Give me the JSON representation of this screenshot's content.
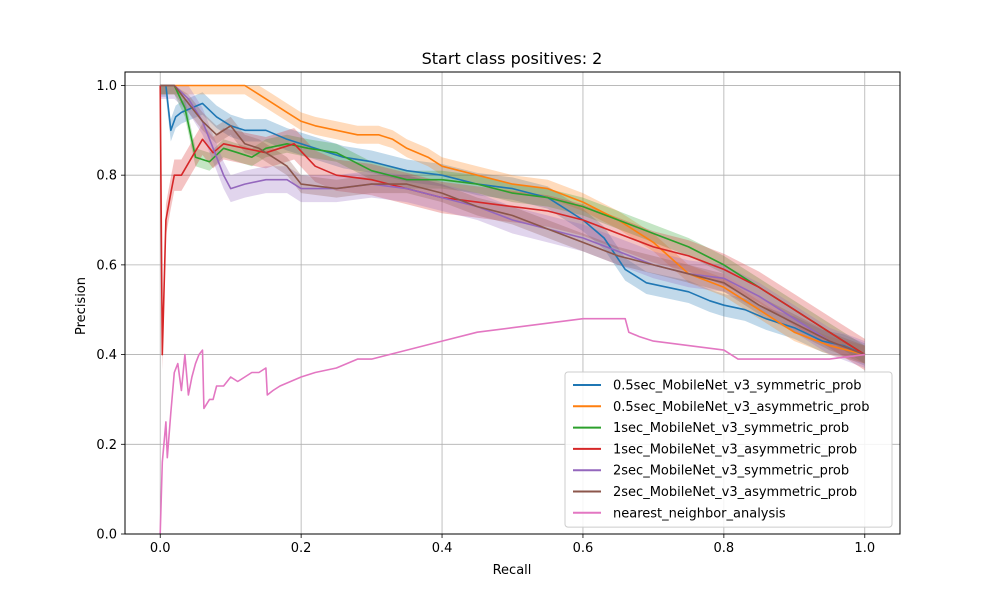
{
  "chart_data": {
    "type": "line",
    "title": "Start class positives: 2",
    "xlabel": "Recall",
    "ylabel": "Precision",
    "xlim": [
      -0.05,
      1.05
    ],
    "ylim": [
      0.0,
      1.03
    ],
    "xticks": [
      0.0,
      0.2,
      0.4,
      0.6,
      0.8,
      1.0
    ],
    "xtick_labels": [
      "0.0",
      "0.2",
      "0.4",
      "0.6",
      "0.8",
      "1.0"
    ],
    "yticks": [
      0.0,
      0.2,
      0.4,
      0.6,
      0.8,
      1.0
    ],
    "ytick_labels": [
      "0.0",
      "0.2",
      "0.4",
      "0.6",
      "0.8",
      "1.0"
    ],
    "grid": true,
    "legend_position": "lower-right",
    "series": [
      {
        "name": "0.5sec_MobileNet_v3_symmetric_prob",
        "color": "#1f77b4",
        "band": 0.025,
        "x": [
          0.0,
          0.003,
          0.008,
          0.015,
          0.022,
          0.03,
          0.045,
          0.06,
          0.08,
          0.1,
          0.12,
          0.15,
          0.18,
          0.22,
          0.26,
          0.3,
          0.35,
          0.4,
          0.45,
          0.5,
          0.55,
          0.6,
          0.63,
          0.66,
          0.69,
          0.72,
          0.75,
          0.78,
          0.8,
          0.83,
          0.86,
          0.9,
          0.94,
          0.97,
          1.0
        ],
        "y": [
          1.0,
          1.0,
          1.0,
          0.9,
          0.93,
          0.94,
          0.95,
          0.96,
          0.93,
          0.91,
          0.9,
          0.9,
          0.88,
          0.86,
          0.84,
          0.83,
          0.81,
          0.8,
          0.78,
          0.77,
          0.75,
          0.7,
          0.66,
          0.59,
          0.56,
          0.55,
          0.54,
          0.52,
          0.51,
          0.5,
          0.48,
          0.46,
          0.43,
          0.42,
          0.4
        ]
      },
      {
        "name": "0.5sec_MobileNet_v3_asymmetric_prob",
        "color": "#ff7f0e",
        "band": 0.02,
        "x": [
          0.0,
          0.02,
          0.05,
          0.08,
          0.1,
          0.12,
          0.14,
          0.16,
          0.18,
          0.2,
          0.22,
          0.25,
          0.28,
          0.31,
          0.33,
          0.35,
          0.38,
          0.4,
          0.45,
          0.5,
          0.55,
          0.6,
          0.65,
          0.7,
          0.75,
          0.8,
          0.85,
          0.9,
          0.95,
          1.0
        ],
        "y": [
          1.0,
          1.0,
          1.0,
          1.0,
          1.0,
          1.0,
          0.98,
          0.96,
          0.94,
          0.92,
          0.91,
          0.9,
          0.89,
          0.89,
          0.88,
          0.86,
          0.84,
          0.82,
          0.8,
          0.78,
          0.77,
          0.74,
          0.7,
          0.65,
          0.58,
          0.55,
          0.5,
          0.45,
          0.42,
          0.4
        ]
      },
      {
        "name": "1sec_MobileNet_v3_symmetric_prob",
        "color": "#2ca02c",
        "band": 0.02,
        "x": [
          0.0,
          0.02,
          0.035,
          0.05,
          0.07,
          0.09,
          0.11,
          0.13,
          0.15,
          0.18,
          0.21,
          0.25,
          0.3,
          0.35,
          0.4,
          0.45,
          0.5,
          0.55,
          0.6,
          0.65,
          0.7,
          0.75,
          0.8,
          0.85,
          0.9,
          0.95,
          1.0
        ],
        "y": [
          1.0,
          1.0,
          0.95,
          0.84,
          0.83,
          0.86,
          0.85,
          0.84,
          0.86,
          0.87,
          0.86,
          0.85,
          0.81,
          0.79,
          0.79,
          0.78,
          0.76,
          0.75,
          0.73,
          0.7,
          0.67,
          0.64,
          0.6,
          0.55,
          0.5,
          0.45,
          0.4
        ]
      },
      {
        "name": "1sec_MobileNet_v3_asymmetric_prob",
        "color": "#d62728",
        "band": 0.035,
        "x": [
          0.0,
          0.003,
          0.008,
          0.015,
          0.02,
          0.03,
          0.045,
          0.06,
          0.075,
          0.09,
          0.12,
          0.15,
          0.19,
          0.22,
          0.25,
          0.3,
          0.35,
          0.4,
          0.45,
          0.5,
          0.55,
          0.6,
          0.65,
          0.7,
          0.75,
          0.8,
          0.85,
          0.9,
          0.95,
          1.0
        ],
        "y": [
          1.0,
          0.4,
          0.7,
          0.76,
          0.8,
          0.8,
          0.84,
          0.88,
          0.85,
          0.87,
          0.86,
          0.85,
          0.87,
          0.82,
          0.8,
          0.79,
          0.77,
          0.75,
          0.74,
          0.73,
          0.72,
          0.7,
          0.67,
          0.64,
          0.62,
          0.59,
          0.55,
          0.5,
          0.45,
          0.4
        ]
      },
      {
        "name": "2sec_MobileNet_v3_symmetric_prob",
        "color": "#9467bd",
        "band": 0.03,
        "x": [
          0.0,
          0.02,
          0.04,
          0.06,
          0.08,
          0.09,
          0.1,
          0.12,
          0.15,
          0.18,
          0.2,
          0.25,
          0.3,
          0.35,
          0.4,
          0.45,
          0.5,
          0.55,
          0.6,
          0.65,
          0.7,
          0.75,
          0.8,
          0.85,
          0.9,
          0.95,
          1.0
        ],
        "y": [
          1.0,
          1.0,
          0.97,
          0.92,
          0.84,
          0.8,
          0.77,
          0.78,
          0.79,
          0.79,
          0.77,
          0.77,
          0.78,
          0.77,
          0.75,
          0.73,
          0.7,
          0.68,
          0.66,
          0.63,
          0.6,
          0.58,
          0.57,
          0.53,
          0.48,
          0.43,
          0.4
        ]
      },
      {
        "name": "2sec_MobileNet_v3_asymmetric_prob",
        "color": "#8c564b",
        "band": 0.02,
        "x": [
          0.0,
          0.02,
          0.04,
          0.06,
          0.08,
          0.1,
          0.12,
          0.14,
          0.16,
          0.18,
          0.2,
          0.25,
          0.3,
          0.35,
          0.4,
          0.45,
          0.5,
          0.55,
          0.6,
          0.65,
          0.7,
          0.75,
          0.8,
          0.85,
          0.9,
          0.95,
          1.0
        ],
        "y": [
          1.0,
          1.0,
          0.96,
          0.92,
          0.89,
          0.91,
          0.87,
          0.86,
          0.84,
          0.82,
          0.78,
          0.77,
          0.78,
          0.78,
          0.76,
          0.73,
          0.71,
          0.68,
          0.65,
          0.62,
          0.6,
          0.58,
          0.56,
          0.51,
          0.47,
          0.43,
          0.4
        ]
      },
      {
        "name": "nearest_neighbor_analysis",
        "color": "#e377c2",
        "band": 0,
        "x": [
          0.0,
          0.003,
          0.008,
          0.01,
          0.015,
          0.02,
          0.025,
          0.03,
          0.035,
          0.04,
          0.045,
          0.05,
          0.055,
          0.06,
          0.062,
          0.07,
          0.075,
          0.08,
          0.09,
          0.1,
          0.11,
          0.12,
          0.13,
          0.14,
          0.15,
          0.152,
          0.16,
          0.17,
          0.2,
          0.22,
          0.25,
          0.28,
          0.3,
          0.35,
          0.4,
          0.45,
          0.5,
          0.55,
          0.6,
          0.62,
          0.66,
          0.665,
          0.68,
          0.7,
          0.75,
          0.8,
          0.82,
          0.85,
          0.9,
          0.95,
          1.0
        ],
        "y": [
          0.0,
          0.16,
          0.25,
          0.17,
          0.27,
          0.36,
          0.38,
          0.32,
          0.4,
          0.31,
          0.35,
          0.38,
          0.4,
          0.41,
          0.28,
          0.3,
          0.3,
          0.33,
          0.33,
          0.35,
          0.34,
          0.35,
          0.36,
          0.36,
          0.37,
          0.31,
          0.32,
          0.33,
          0.35,
          0.36,
          0.37,
          0.39,
          0.39,
          0.41,
          0.43,
          0.45,
          0.46,
          0.47,
          0.48,
          0.48,
          0.48,
          0.45,
          0.44,
          0.43,
          0.42,
          0.41,
          0.39,
          0.39,
          0.39,
          0.39,
          0.4
        ]
      }
    ]
  }
}
